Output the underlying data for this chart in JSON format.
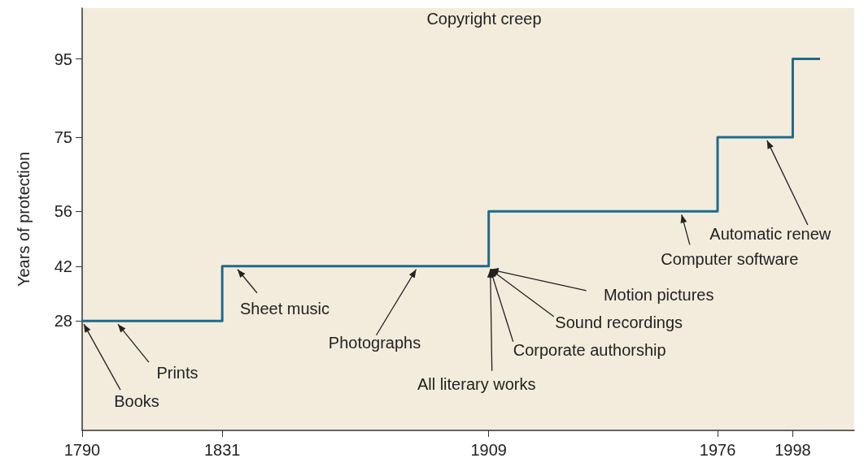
{
  "chart_data": {
    "type": "step",
    "title": "Copyright creep",
    "ylabel": "Years of protection",
    "x": [
      1790,
      1831,
      1909,
      1976,
      1998,
      2006
    ],
    "series": [
      {
        "color": "#1f6a8c",
        "values": [
          28,
          42,
          56,
          75,
          95,
          95
        ]
      }
    ],
    "xlim": [
      1790,
      2016
    ],
    "xticks": [
      1790,
      1831,
      1909,
      1976,
      1998
    ],
    "ylim": [
      0,
      108
    ],
    "yticks": [
      28,
      42,
      56,
      75,
      95
    ],
    "grid": false,
    "annotations": [
      {
        "text": "Books",
        "x": 1790,
        "y": 28
      },
      {
        "text": "Prints",
        "x": 1800,
        "y": 28
      },
      {
        "text": "Sheet music",
        "x": 1835,
        "y": 42
      },
      {
        "text": "Photographs",
        "x": 1888,
        "y": 42
      },
      {
        "text": "All literary works",
        "x": 1909,
        "y": 42
      },
      {
        "text": "Corporate authorship",
        "x": 1909,
        "y": 42
      },
      {
        "text": "Sound recordings",
        "x": 1909,
        "y": 42
      },
      {
        "text": "Motion pictures",
        "x": 1909,
        "y": 42
      },
      {
        "text": "Computer software",
        "x": 1965,
        "y": 56
      },
      {
        "text": "Automatic renew",
        "x": 1990,
        "y": 75
      }
    ]
  }
}
